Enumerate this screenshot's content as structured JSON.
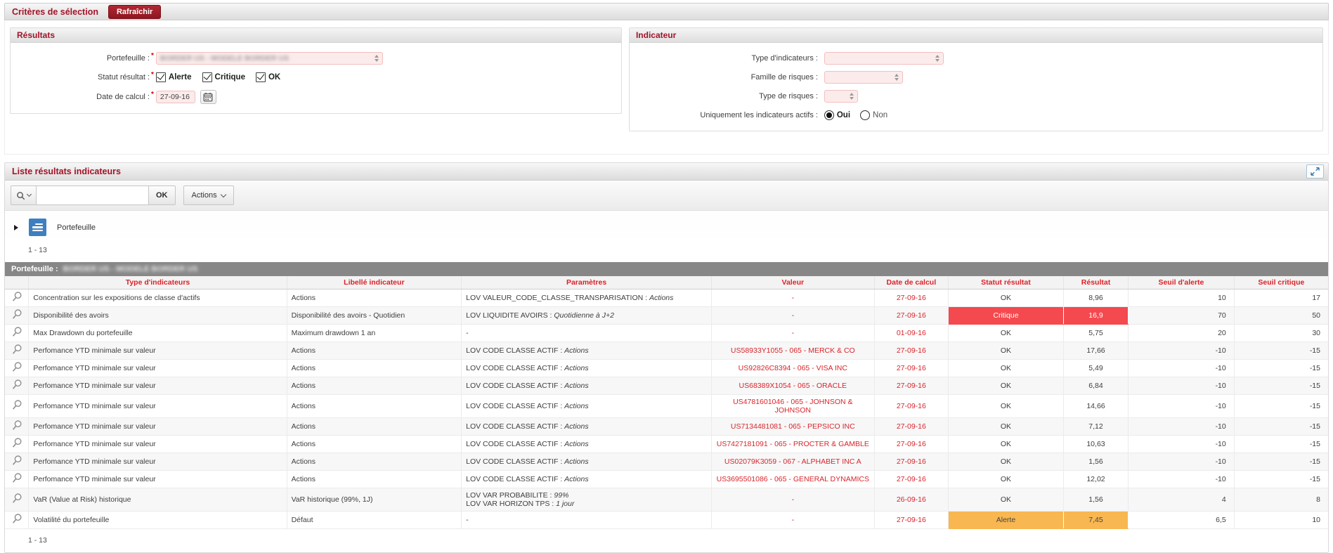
{
  "selection": {
    "title": "Critères de sélection",
    "refresh_button": "Rafraîchir"
  },
  "results_panel": {
    "title": "Résultats",
    "portfolio_label": "Portefeuille :",
    "portfolio_value": "BORDER US - MODELE BORDER US",
    "status_label": "Statut résultat :",
    "status_options": [
      {
        "label": "Alerte",
        "checked": true
      },
      {
        "label": "Critique",
        "checked": true
      },
      {
        "label": "OK",
        "checked": true
      }
    ],
    "calc_date_label": "Date de calcul :",
    "calc_date_value": "27-09-16"
  },
  "indicator_panel": {
    "title": "Indicateur",
    "type_label": "Type d'indicateurs :",
    "family_label": "Famille de risques :",
    "risk_type_label": "Type de risques :",
    "active_label": "Uniquement les indicateurs actifs :",
    "active_options": [
      {
        "label": "Oui",
        "selected": true
      },
      {
        "label": "Non",
        "selected": false
      }
    ]
  },
  "list_section": {
    "title": "Liste résultats indicateurs",
    "search_ok": "OK",
    "actions_label": "Actions",
    "tree_label": "Portefeuille",
    "pagination_top": "1 - 13",
    "pagination_bottom": "1 - 13",
    "group_header_label": "Portefeuille :",
    "group_header_value": "BORDER US - MODELE BORDER US"
  },
  "table": {
    "columns": [
      "Type d'indicateurs",
      "Libellé indicateur",
      "Paramètres",
      "Valeur",
      "Date de calcul",
      "Statut résultat",
      "Résultat",
      "Seuil d'alerte",
      "Seuil critique"
    ],
    "rows": [
      {
        "type": "Concentration sur les expositions de classe d'actifs",
        "label": "Actions",
        "params": [
          {
            "name": "LOV VALEUR_CODE_CLASSE_TRANSPARISATION",
            "value": "Actions"
          }
        ],
        "valeur": "-",
        "date": "27-09-16",
        "statut": "OK",
        "resultat": "8,96",
        "seuil_alerte": "10",
        "seuil_critique": "17",
        "highlight": null
      },
      {
        "type": "Disponibilité des avoirs",
        "label": "Disponibilité des avoirs - Quotidien",
        "params": [
          {
            "name": "LOV LIQUIDITE AVOIRS",
            "value": "Quotidienne à J+2"
          }
        ],
        "valeur": "-",
        "date": "27-09-16",
        "statut": "Critique",
        "resultat": "16,9",
        "seuil_alerte": "70",
        "seuil_critique": "50",
        "highlight": "critical"
      },
      {
        "type": "Max Drawdown du portefeuille",
        "label": "Maximum drawdown 1 an",
        "params": null,
        "valeur": "-",
        "date": "01-09-16",
        "statut": "OK",
        "resultat": "5,75",
        "seuil_alerte": "20",
        "seuil_critique": "30",
        "highlight": null
      },
      {
        "type": "Perfomance YTD minimale sur valeur",
        "label": "Actions",
        "params": [
          {
            "name": "LOV CODE CLASSE ACTIF",
            "value": "Actions"
          }
        ],
        "valeur": "US58933Y1055 - 065 - MERCK & CO",
        "date": "27-09-16",
        "statut": "OK",
        "resultat": "17,66",
        "seuil_alerte": "-10",
        "seuil_critique": "-15",
        "highlight": null
      },
      {
        "type": "Perfomance YTD minimale sur valeur",
        "label": "Actions",
        "params": [
          {
            "name": "LOV CODE CLASSE ACTIF",
            "value": "Actions"
          }
        ],
        "valeur": "US92826C8394 - 065 - VISA INC",
        "date": "27-09-16",
        "statut": "OK",
        "resultat": "5,49",
        "seuil_alerte": "-10",
        "seuil_critique": "-15",
        "highlight": null
      },
      {
        "type": "Perfomance YTD minimale sur valeur",
        "label": "Actions",
        "params": [
          {
            "name": "LOV CODE CLASSE ACTIF",
            "value": "Actions"
          }
        ],
        "valeur": "US68389X1054 - 065 - ORACLE",
        "date": "27-09-16",
        "statut": "OK",
        "resultat": "6,84",
        "seuil_alerte": "-10",
        "seuil_critique": "-15",
        "highlight": null
      },
      {
        "type": "Perfomance YTD minimale sur valeur",
        "label": "Actions",
        "params": [
          {
            "name": "LOV CODE CLASSE ACTIF",
            "value": "Actions"
          }
        ],
        "valeur": "US4781601046 - 065 - JOHNSON & JOHNSON",
        "date": "27-09-16",
        "statut": "OK",
        "resultat": "14,66",
        "seuil_alerte": "-10",
        "seuil_critique": "-15",
        "highlight": null
      },
      {
        "type": "Perfomance YTD minimale sur valeur",
        "label": "Actions",
        "params": [
          {
            "name": "LOV CODE CLASSE ACTIF",
            "value": "Actions"
          }
        ],
        "valeur": "US7134481081 - 065 - PEPSICO INC",
        "date": "27-09-16",
        "statut": "OK",
        "resultat": "7,12",
        "seuil_alerte": "-10",
        "seuil_critique": "-15",
        "highlight": null
      },
      {
        "type": "Perfomance YTD minimale sur valeur",
        "label": "Actions",
        "params": [
          {
            "name": "LOV CODE CLASSE ACTIF",
            "value": "Actions"
          }
        ],
        "valeur": "US7427181091 - 065 - PROCTER & GAMBLE",
        "date": "27-09-16",
        "statut": "OK",
        "resultat": "10,63",
        "seuil_alerte": "-10",
        "seuil_critique": "-15",
        "highlight": null
      },
      {
        "type": "Perfomance YTD minimale sur valeur",
        "label": "Actions",
        "params": [
          {
            "name": "LOV CODE CLASSE ACTIF",
            "value": "Actions"
          }
        ],
        "valeur": "US02079K3059 - 067 - ALPHABET INC A",
        "date": "27-09-16",
        "statut": "OK",
        "resultat": "1,56",
        "seuil_alerte": "-10",
        "seuil_critique": "-15",
        "highlight": null
      },
      {
        "type": "Perfomance YTD minimale sur valeur",
        "label": "Actions",
        "params": [
          {
            "name": "LOV CODE CLASSE ACTIF",
            "value": "Actions"
          }
        ],
        "valeur": "US3695501086 - 065 - GENERAL DYNAMICS",
        "date": "27-09-16",
        "statut": "OK",
        "resultat": "12,02",
        "seuil_alerte": "-10",
        "seuil_critique": "-15",
        "highlight": null
      },
      {
        "type": "VaR (Value at Risk) historique",
        "label": "VaR historique (99%, 1J)",
        "params": [
          {
            "name": "LOV VAR PROBABILITE",
            "value": "99%"
          },
          {
            "name": "LOV VAR HORIZON TPS",
            "value": "1 jour"
          }
        ],
        "valeur": "-",
        "date": "26-09-16",
        "statut": "OK",
        "resultat": "1,56",
        "seuil_alerte": "4",
        "seuil_critique": "8",
        "highlight": null
      },
      {
        "type": "Volatilité du portefeuille",
        "label": "Défaut",
        "params": null,
        "valeur": "-",
        "date": "27-09-16",
        "statut": "Alerte",
        "resultat": "7,45",
        "seuil_alerte": "6,5",
        "seuil_critique": "10",
        "highlight": "alert"
      }
    ]
  },
  "colors": {
    "critical_bg": "#f4494f",
    "alert_bg": "#f8b751",
    "accent_red": "#a31227",
    "value_red": "#d9252c",
    "header_red": "#dc2127",
    "tree_icon_blue": "#3e7fc0",
    "expand_icon_blue": "#2e6da4"
  }
}
